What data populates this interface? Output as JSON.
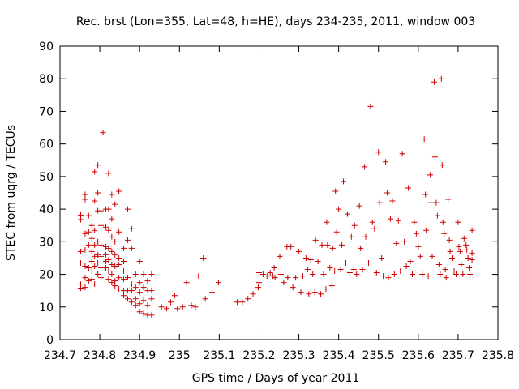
{
  "chart_data": {
    "type": "scatter",
    "title": "Rec. brst (Lon=355, Lat=48, h=HE), days 234-235, 2011, window 003",
    "xlabel": "GPS time / Days of year 2011",
    "ylabel": "STEC from uqrg / TECUs",
    "xlim": [
      234.7,
      235.8
    ],
    "ylim": [
      0,
      90
    ],
    "x_ticks": [
      "234.7",
      "234.8",
      "234.9",
      "235",
      "235.1",
      "235.2",
      "235.3",
      "235.4",
      "235.5",
      "235.6",
      "235.7",
      "235.8"
    ],
    "y_ticks": [
      "0",
      "10",
      "20",
      "30",
      "40",
      "50",
      "60",
      "70",
      "80",
      "90"
    ],
    "grid": false,
    "marker": "+",
    "color": "#cc0000",
    "points": [
      [
        234.752,
        38.2
      ],
      [
        234.752,
        36.8
      ],
      [
        234.752,
        27.0
      ],
      [
        234.752,
        23.5
      ],
      [
        234.752,
        17.0
      ],
      [
        234.752,
        15.8
      ],
      [
        234.763,
        44.5
      ],
      [
        234.763,
        43.0
      ],
      [
        234.763,
        32.5
      ],
      [
        234.763,
        27.5
      ],
      [
        234.763,
        22.5
      ],
      [
        234.763,
        19.0
      ],
      [
        234.763,
        16.0
      ],
      [
        234.772,
        38.0
      ],
      [
        234.772,
        33.0
      ],
      [
        234.772,
        29.0
      ],
      [
        234.772,
        22.0
      ],
      [
        234.772,
        18.0
      ],
      [
        234.78,
        35.0
      ],
      [
        234.78,
        31.0
      ],
      [
        234.78,
        27.0
      ],
      [
        234.78,
        24.0
      ],
      [
        234.78,
        21.0
      ],
      [
        234.78,
        18.5
      ],
      [
        234.787,
        51.5
      ],
      [
        234.787,
        42.5
      ],
      [
        234.787,
        33.5
      ],
      [
        234.787,
        29.0
      ],
      [
        234.787,
        25.5
      ],
      [
        234.787,
        22.5
      ],
      [
        234.787,
        17.0
      ],
      [
        234.795,
        53.5
      ],
      [
        234.795,
        45.0
      ],
      [
        234.795,
        39.5
      ],
      [
        234.795,
        30.0
      ],
      [
        234.795,
        26.0
      ],
      [
        234.795,
        23.5
      ],
      [
        234.795,
        20.0
      ],
      [
        234.803,
        39.5
      ],
      [
        234.803,
        35.0
      ],
      [
        234.803,
        29.0
      ],
      [
        234.803,
        25.5
      ],
      [
        234.803,
        22.0
      ],
      [
        234.803,
        19.0
      ],
      [
        234.808,
        63.5
      ],
      [
        234.815,
        40.0
      ],
      [
        234.815,
        34.5
      ],
      [
        234.815,
        28.5
      ],
      [
        234.815,
        26.0
      ],
      [
        234.815,
        24.0
      ],
      [
        234.815,
        22.0
      ],
      [
        234.822,
        51.0
      ],
      [
        234.822,
        40.0
      ],
      [
        234.822,
        33.5
      ],
      [
        234.822,
        28.0
      ],
      [
        234.822,
        24.5
      ],
      [
        234.822,
        21.0
      ],
      [
        234.822,
        18.5
      ],
      [
        234.83,
        44.5
      ],
      [
        234.83,
        37.0
      ],
      [
        234.83,
        31.5
      ],
      [
        234.83,
        27.0
      ],
      [
        234.83,
        23.0
      ],
      [
        234.83,
        20.0
      ],
      [
        234.83,
        17.5
      ],
      [
        234.838,
        41.5
      ],
      [
        234.838,
        30.0
      ],
      [
        234.838,
        26.0
      ],
      [
        234.838,
        22.5
      ],
      [
        234.838,
        18.0
      ],
      [
        234.838,
        16.5
      ],
      [
        234.848,
        45.5
      ],
      [
        234.848,
        33.0
      ],
      [
        234.848,
        25.0
      ],
      [
        234.848,
        23.0
      ],
      [
        234.848,
        19.0
      ],
      [
        234.848,
        15.5
      ],
      [
        234.86,
        28.0
      ],
      [
        234.86,
        24.0
      ],
      [
        234.86,
        21.0
      ],
      [
        234.86,
        18.5
      ],
      [
        234.86,
        15.0
      ],
      [
        234.86,
        13.5
      ],
      [
        234.87,
        40.0
      ],
      [
        234.87,
        30.5
      ],
      [
        234.87,
        19.0
      ],
      [
        234.87,
        15.0
      ],
      [
        234.87,
        12.5
      ],
      [
        234.88,
        34.0
      ],
      [
        234.88,
        28.0
      ],
      [
        234.88,
        17.0
      ],
      [
        234.88,
        15.0
      ],
      [
        234.88,
        11.5
      ],
      [
        234.89,
        20.0
      ],
      [
        234.89,
        16.0
      ],
      [
        234.89,
        12.5
      ],
      [
        234.89,
        10.5
      ],
      [
        234.9,
        24.0
      ],
      [
        234.9,
        17.5
      ],
      [
        234.9,
        14.5
      ],
      [
        234.9,
        11.0
      ],
      [
        234.9,
        8.5
      ],
      [
        234.91,
        20.0
      ],
      [
        234.91,
        16.0
      ],
      [
        234.91,
        12.0
      ],
      [
        234.91,
        8.0
      ],
      [
        234.92,
        18.0
      ],
      [
        234.92,
        15.0
      ],
      [
        234.92,
        10.5
      ],
      [
        234.92,
        7.5
      ],
      [
        234.93,
        20.0
      ],
      [
        234.93,
        15.0
      ],
      [
        234.93,
        12.5
      ],
      [
        234.93,
        7.5
      ],
      [
        234.955,
        10.0
      ],
      [
        234.968,
        9.5
      ],
      [
        234.978,
        11.5
      ],
      [
        234.988,
        13.5
      ],
      [
        234.995,
        9.5
      ],
      [
        235.008,
        10.0
      ],
      [
        235.018,
        17.5
      ],
      [
        235.03,
        10.5
      ],
      [
        235.04,
        10.0
      ],
      [
        235.048,
        19.5
      ],
      [
        235.06,
        25.0
      ],
      [
        235.065,
        12.5
      ],
      [
        235.082,
        14.5
      ],
      [
        235.098,
        17.5
      ],
      [
        235.145,
        11.5
      ],
      [
        235.158,
        11.5
      ],
      [
        235.172,
        12.5
      ],
      [
        235.185,
        14.0
      ],
      [
        235.198,
        16.0
      ],
      [
        235.2,
        17.5
      ],
      [
        235.2,
        20.5
      ],
      [
        235.21,
        20.0
      ],
      [
        235.22,
        19.5
      ],
      [
        235.228,
        20.5
      ],
      [
        235.235,
        19.5
      ],
      [
        235.238,
        22.0
      ],
      [
        235.24,
        19.0
      ],
      [
        235.252,
        25.5
      ],
      [
        235.255,
        20.0
      ],
      [
        235.262,
        17.5
      ],
      [
        235.27,
        28.5
      ],
      [
        235.272,
        19.0
      ],
      [
        235.28,
        28.5
      ],
      [
        235.285,
        16.0
      ],
      [
        235.292,
        19.0
      ],
      [
        235.3,
        27.0
      ],
      [
        235.305,
        14.5
      ],
      [
        235.31,
        19.5
      ],
      [
        235.318,
        25.0
      ],
      [
        235.322,
        21.5
      ],
      [
        235.325,
        14.0
      ],
      [
        235.33,
        24.5
      ],
      [
        235.335,
        20.0
      ],
      [
        235.34,
        14.5
      ],
      [
        235.342,
        30.5
      ],
      [
        235.348,
        24.0
      ],
      [
        235.355,
        14.0
      ],
      [
        235.358,
        29.0
      ],
      [
        235.362,
        20.0
      ],
      [
        235.368,
        15.5
      ],
      [
        235.37,
        36.0
      ],
      [
        235.372,
        29.0
      ],
      [
        235.378,
        22.0
      ],
      [
        235.383,
        16.5
      ],
      [
        235.385,
        28.0
      ],
      [
        235.39,
        21.0
      ],
      [
        235.392,
        45.5
      ],
      [
        235.395,
        33.0
      ],
      [
        235.4,
        40.0
      ],
      [
        235.405,
        21.5
      ],
      [
        235.408,
        29.0
      ],
      [
        235.412,
        48.5
      ],
      [
        235.418,
        23.5
      ],
      [
        235.422,
        38.5
      ],
      [
        235.428,
        20.5
      ],
      [
        235.432,
        31.5
      ],
      [
        235.438,
        21.5
      ],
      [
        235.44,
        35.0
      ],
      [
        235.445,
        20.0
      ],
      [
        235.452,
        41.0
      ],
      [
        235.455,
        28.0
      ],
      [
        235.46,
        21.5
      ],
      [
        235.465,
        53.0
      ],
      [
        235.468,
        31.5
      ],
      [
        235.475,
        23.5
      ],
      [
        235.48,
        71.5
      ],
      [
        235.485,
        36.0
      ],
      [
        235.49,
        34.0
      ],
      [
        235.495,
        20.5
      ],
      [
        235.5,
        57.5
      ],
      [
        235.503,
        42.0
      ],
      [
        235.508,
        25.0
      ],
      [
        235.512,
        19.5
      ],
      [
        235.518,
        54.5
      ],
      [
        235.522,
        45.0
      ],
      [
        235.525,
        19.0
      ],
      [
        235.53,
        37.0
      ],
      [
        235.535,
        42.5
      ],
      [
        235.54,
        20.0
      ],
      [
        235.545,
        29.5
      ],
      [
        235.55,
        36.5
      ],
      [
        235.555,
        21.0
      ],
      [
        235.56,
        57.0
      ],
      [
        235.565,
        30.0
      ],
      [
        235.57,
        22.5
      ],
      [
        235.575,
        46.5
      ],
      [
        235.58,
        24.0
      ],
      [
        235.585,
        20.0
      ],
      [
        235.59,
        36.0
      ],
      [
        235.595,
        32.5
      ],
      [
        235.6,
        28.5
      ],
      [
        235.605,
        25.5
      ],
      [
        235.61,
        20.0
      ],
      [
        235.615,
        61.5
      ],
      [
        235.618,
        44.5
      ],
      [
        235.62,
        33.5
      ],
      [
        235.625,
        19.5
      ],
      [
        235.63,
        50.5
      ],
      [
        235.632,
        42.0
      ],
      [
        235.635,
        25.5
      ],
      [
        235.64,
        79.0
      ],
      [
        235.642,
        56.0
      ],
      [
        235.645,
        42.0
      ],
      [
        235.648,
        38.0
      ],
      [
        235.652,
        23.0
      ],
      [
        235.655,
        20.0
      ],
      [
        235.658,
        80.0
      ],
      [
        235.66,
        53.5
      ],
      [
        235.662,
        36.0
      ],
      [
        235.665,
        32.5
      ],
      [
        235.668,
        21.5
      ],
      [
        235.67,
        19.0
      ],
      [
        235.675,
        43.0
      ],
      [
        235.678,
        30.5
      ],
      [
        235.68,
        27.0
      ],
      [
        235.685,
        25.0
      ],
      [
        235.69,
        21.0
      ],
      [
        235.695,
        20.0
      ],
      [
        235.7,
        36.0
      ],
      [
        235.702,
        28.5
      ],
      [
        235.705,
        27.0
      ],
      [
        235.708,
        23.0
      ],
      [
        235.712,
        20.0
      ],
      [
        235.715,
        31.0
      ],
      [
        235.72,
        29.0
      ],
      [
        235.722,
        27.5
      ],
      [
        235.725,
        25.0
      ],
      [
        235.728,
        22.0
      ],
      [
        235.73,
        20.0
      ],
      [
        235.735,
        33.5
      ],
      [
        235.735,
        26.5
      ],
      [
        235.735,
        24.5
      ]
    ]
  }
}
